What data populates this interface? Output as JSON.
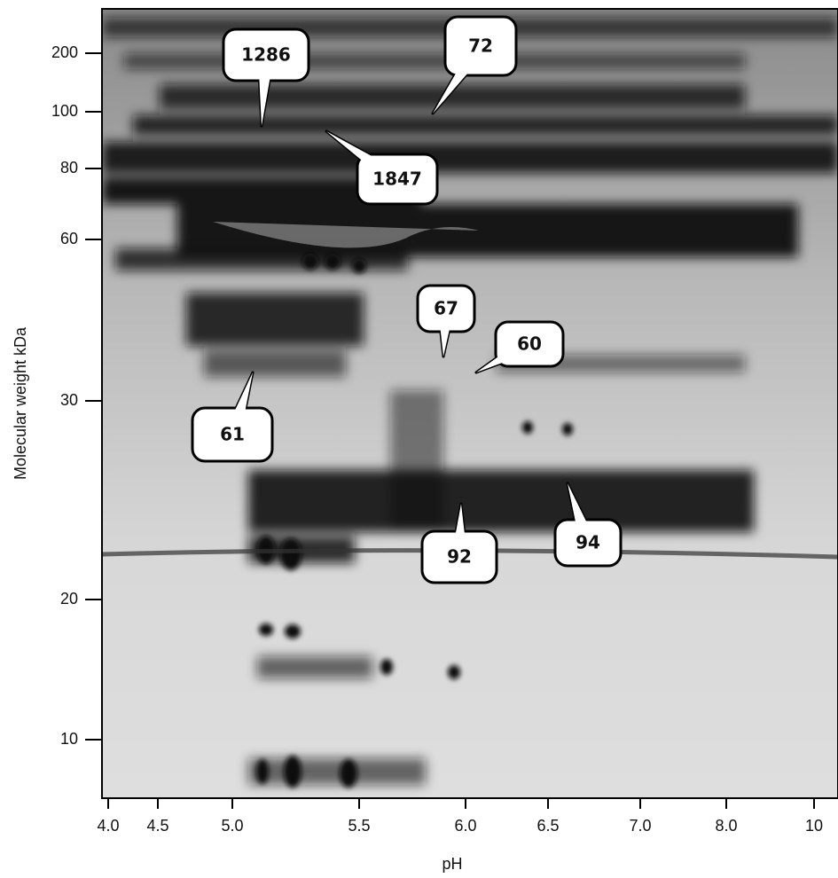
{
  "figure": {
    "y_axis": {
      "label": "Molecular weight kDa",
      "ticks": [
        "200",
        "100",
        "80",
        "60",
        "30",
        "20",
        "10"
      ]
    },
    "x_axis": {
      "label": "pH",
      "ticks": [
        "4.0",
        "4.5",
        "5.0",
        "5.5",
        "6.0",
        "6.5",
        "7.0",
        "8.0",
        "10"
      ]
    },
    "callouts": [
      "1286",
      "72",
      "1847",
      "67",
      "60",
      "61",
      "92",
      "94"
    ]
  }
}
